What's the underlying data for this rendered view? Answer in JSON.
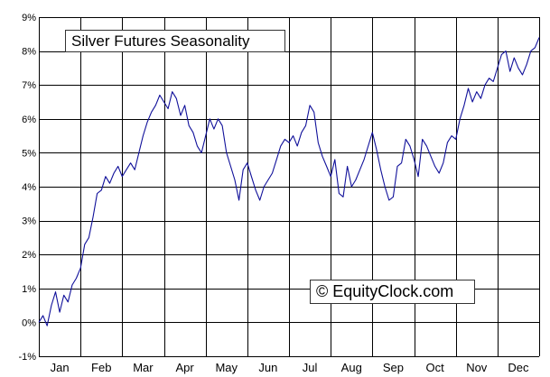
{
  "chart_data": {
    "type": "line",
    "title": "Silver Futures Seasonality",
    "watermark": "© EquityClock.com",
    "xlabel": "",
    "ylabel": "",
    "x_categories": [
      "Jan",
      "Feb",
      "Mar",
      "Apr",
      "May",
      "Jun",
      "Jul",
      "Aug",
      "Sep",
      "Oct",
      "Nov",
      "Dec"
    ],
    "ylim": [
      -1,
      9
    ],
    "y_ticks": [
      -1,
      0,
      1,
      2,
      3,
      4,
      5,
      6,
      7,
      8,
      9
    ],
    "y_tick_labels": [
      "-1%",
      "0%",
      "1%",
      "2%",
      "3%",
      "4%",
      "5%",
      "6%",
      "7%",
      "8%",
      "9%"
    ],
    "grid": true,
    "legend": "none",
    "line_color": "#10109a",
    "series": [
      {
        "x": [
          0,
          0.1,
          0.2,
          0.3,
          0.4,
          0.5,
          0.6,
          0.7,
          0.8,
          0.9,
          1.0,
          1.1,
          1.2,
          1.3,
          1.4,
          1.5,
          1.6,
          1.7,
          1.8,
          1.9,
          2.0,
          2.1,
          2.2,
          2.3,
          2.4,
          2.5,
          2.6,
          2.7,
          2.8,
          2.9,
          3.0,
          3.1,
          3.2,
          3.3,
          3.4,
          3.5,
          3.6,
          3.7,
          3.8,
          3.9,
          4.0,
          4.1,
          4.2,
          4.3,
          4.4,
          4.5,
          4.6,
          4.7,
          4.8,
          4.9,
          5.0,
          5.1,
          5.2,
          5.3,
          5.4,
          5.5,
          5.6,
          5.7,
          5.8,
          5.9,
          6.0,
          6.1,
          6.2,
          6.3,
          6.4,
          6.5,
          6.6,
          6.7,
          6.8,
          6.9,
          7.0,
          7.1,
          7.2,
          7.3,
          7.4,
          7.5,
          7.6,
          7.7,
          7.8,
          7.9,
          8.0,
          8.1,
          8.2,
          8.3,
          8.4,
          8.5,
          8.6,
          8.7,
          8.8,
          8.9,
          9.0,
          9.1,
          9.2,
          9.3,
          9.4,
          9.5,
          9.6,
          9.7,
          9.8,
          9.9,
          10.0,
          10.1,
          10.2,
          10.3,
          10.4,
          10.5,
          10.6,
          10.7,
          10.8,
          10.9,
          11.0,
          11.1,
          11.2,
          11.3,
          11.4,
          11.5,
          11.6,
          11.7,
          11.8,
          11.9,
          12.0
        ],
        "values": [
          0.0,
          0.2,
          -0.1,
          0.5,
          0.9,
          0.3,
          0.8,
          0.6,
          1.1,
          1.3,
          1.6,
          2.3,
          2.5,
          3.1,
          3.8,
          3.9,
          4.3,
          4.1,
          4.4,
          4.6,
          4.3,
          4.5,
          4.7,
          4.5,
          5.0,
          5.5,
          5.9,
          6.2,
          6.4,
          6.7,
          6.5,
          6.3,
          6.8,
          6.6,
          6.1,
          6.4,
          5.8,
          5.6,
          5.2,
          5.0,
          5.5,
          6.0,
          5.7,
          6.0,
          5.8,
          5.0,
          4.6,
          4.2,
          3.6,
          4.5,
          4.7,
          4.3,
          3.9,
          3.6,
          4.0,
          4.2,
          4.4,
          4.8,
          5.2,
          5.4,
          5.3,
          5.5,
          5.2,
          5.6,
          5.8,
          6.4,
          6.2,
          5.3,
          4.9,
          4.6,
          4.3,
          4.8,
          3.8,
          3.7,
          4.6,
          4.0,
          4.2,
          4.5,
          4.8,
          5.2,
          5.6,
          5.1,
          4.5,
          4.0,
          3.6,
          3.7,
          4.6,
          4.7,
          5.4,
          5.2,
          4.8,
          4.3,
          5.4,
          5.2,
          4.9,
          4.6,
          4.4,
          4.7,
          5.3,
          5.5,
          5.4,
          6.0,
          6.4,
          6.9,
          6.5,
          6.8,
          6.6,
          7.0,
          7.2,
          7.1,
          7.5,
          7.9,
          8.0,
          7.4,
          7.8,
          7.5,
          7.3,
          7.6,
          8.0,
          8.1,
          8.4
        ]
      }
    ]
  }
}
